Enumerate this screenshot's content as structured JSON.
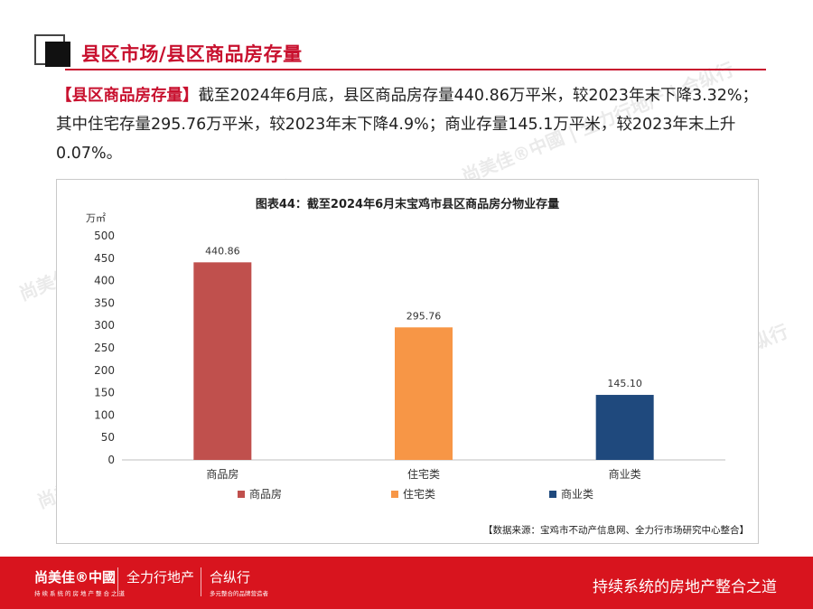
{
  "header": {
    "title": "县区市场/县区商品房存量"
  },
  "paragraph": {
    "highlight": "【县区商品房存量】",
    "text": "截至2024年6月底，县区商品房存量440.86万平米，较2023年末下降3.32%；其中住宅存量295.76万平米，较2023年末下降4.9%；商业存量145.1万平米，较2023年末上升0.07%。"
  },
  "chart_data": {
    "type": "bar",
    "title": "图表44：截至2024年6月末宝鸡市县区商品房分物业存量",
    "ylabel": "万㎡",
    "categories": [
      "商品房",
      "住宅类",
      "商业类"
    ],
    "values": [
      440.86,
      295.76,
      145.1
    ],
    "value_labels": [
      "440.86",
      "295.76",
      "145.10"
    ],
    "colors": [
      "#c0504d",
      "#f79646",
      "#1f497d"
    ],
    "ylim": [
      0,
      500
    ],
    "yticks": [
      "0",
      "50",
      "100",
      "150",
      "200",
      "250",
      "300",
      "350",
      "400",
      "450",
      "500"
    ],
    "legend": [
      "商品房",
      "住宅类",
      "商业类"
    ],
    "legend_position": "bottom",
    "source": "【数据来源：宝鸡市不动产信息网、全力行市场研究中心整合】"
  },
  "footer": {
    "brand": "尚美佳®中國",
    "brand_sub": "持续系统的房地产整合之道",
    "brand2": "全力行地产",
    "brand3": "合纵行",
    "brand3_sub": "多元整合的品牌营造者",
    "slogan": "持续系统的房地产整合之道"
  },
  "watermarks": [
    "尚美佳®中國 | 全力行地产 | 合纵行"
  ]
}
